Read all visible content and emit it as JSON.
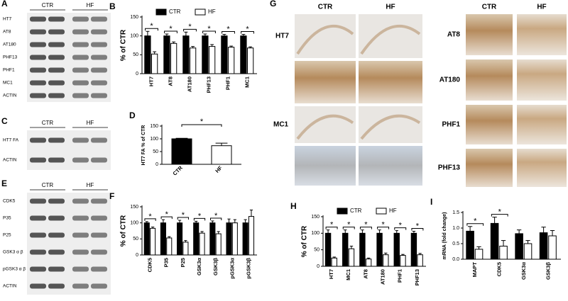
{
  "figure": {
    "blots": [
      {
        "label": "A",
        "groups": [
          "CTR",
          "HF"
        ],
        "rows": [
          "HT7",
          "AT8",
          "AT180",
          "PHF13",
          "PHF1",
          "MC1",
          "ACTIN"
        ]
      },
      {
        "label": "C",
        "groups": [
          "CTR",
          "HF"
        ],
        "rows": [
          "HT7 FA",
          "ACTIN"
        ]
      },
      {
        "label": "E",
        "groups": [
          "CTR",
          "HF"
        ],
        "rows": [
          "CDK5",
          "P35",
          "P25",
          "GSK3 α β",
          "pGSK3 α β",
          "ACTIN"
        ]
      }
    ],
    "micrographs": {
      "label": "G",
      "columns": [
        "CTR",
        "HF",
        "CTR",
        "HF"
      ],
      "left_rows": [
        "HT7",
        "MC1"
      ],
      "right_rows": [
        "AT8",
        "AT180",
        "PHF1",
        "PHF13"
      ]
    }
  },
  "chart_data": [
    {
      "type": "bar",
      "label": "B",
      "y_label": "% of CTR",
      "categories": [
        "HT7",
        "AT8",
        "AT180",
        "PHF13",
        "PHF1",
        "MC1"
      ],
      "series": [
        {
          "name": "CTR",
          "color": "#000000",
          "values": [
            100,
            100,
            100,
            100,
            100,
            100
          ],
          "errors": [
            12,
            5,
            10,
            5,
            4,
            4
          ]
        },
        {
          "name": "HF",
          "color": "#ffffff",
          "values": [
            52,
            80,
            68,
            72,
            70,
            68
          ],
          "errors": [
            6,
            4,
            4,
            5,
            3,
            3
          ]
        }
      ],
      "annotations": [
        "*",
        "*",
        "*",
        "*",
        "*",
        "*"
      ],
      "ylim": [
        0,
        150
      ],
      "yticks": [
        0,
        50,
        100,
        150
      ],
      "legend": "top"
    },
    {
      "type": "bar",
      "label": "D",
      "y_label": "HT7 FA % of CTR",
      "categories": [
        "CTR",
        "HF"
      ],
      "values": [
        100,
        73
      ],
      "errors": [
        2,
        10
      ],
      "colors": [
        "#000000",
        "#ffffff"
      ],
      "annotation": "*",
      "ylim": [
        0,
        150
      ],
      "yticks": [
        0,
        50,
        100,
        150
      ]
    },
    {
      "type": "bar",
      "label": "F",
      "y_label": "% of CTR",
      "categories": [
        "CDK5",
        "P35",
        "P25",
        "GSK3α",
        "GSK3β",
        "pGSK3α",
        "pGSK3β"
      ],
      "series": [
        {
          "name": "CTR",
          "color": "#000000",
          "values": [
            100,
            100,
            100,
            100,
            100,
            100,
            100
          ],
          "errors": [
            4,
            10,
            8,
            5,
            6,
            12,
            10
          ]
        },
        {
          "name": "HF",
          "color": "#ffffff",
          "values": [
            83,
            53,
            40,
            68,
            66,
            100,
            120
          ],
          "errors": [
            4,
            4,
            5,
            5,
            7,
            10,
            20
          ]
        }
      ],
      "annotations": [
        "*",
        "*",
        "*",
        "*",
        "*",
        null,
        null
      ],
      "ylim": [
        0,
        150
      ],
      "yticks": [
        0,
        50,
        100,
        150
      ]
    },
    {
      "type": "bar",
      "label": "H",
      "y_label": "% of CTR",
      "categories": [
        "HT7",
        "MC1",
        "AT8",
        "AT180",
        "PHF1",
        "PHF13"
      ],
      "series": [
        {
          "name": "CTR",
          "color": "#000000",
          "values": [
            100,
            100,
            100,
            100,
            100,
            100
          ],
          "errors": [
            10,
            10,
            10,
            10,
            8,
            6
          ]
        },
        {
          "name": "HF",
          "color": "#ffffff",
          "values": [
            25,
            53,
            22,
            35,
            33,
            35
          ],
          "errors": [
            3,
            8,
            3,
            5,
            3,
            4
          ]
        }
      ],
      "annotations": [
        "*",
        "*",
        "*",
        "*",
        "*",
        "*"
      ],
      "ylim": [
        0,
        150
      ],
      "yticks": [
        0,
        50,
        100,
        150
      ],
      "legend": "top"
    },
    {
      "type": "bar",
      "label": "I",
      "y_label": "mRNA (fold change)",
      "categories": [
        "MAPT",
        "CDK5",
        "GSK3α",
        "GSK3β"
      ],
      "series": [
        {
          "name": "CTR",
          "color": "#000000",
          "values": [
            0.9,
            1.15,
            0.82,
            0.85
          ],
          "errors": [
            0.15,
            0.2,
            0.12,
            0.18
          ]
        },
        {
          "name": "HF",
          "color": "#ffffff",
          "values": [
            0.32,
            0.42,
            0.5,
            0.75
          ],
          "errors": [
            0.08,
            0.18,
            0.1,
            0.17
          ]
        }
      ],
      "annotations": [
        "*",
        "*",
        null,
        null
      ],
      "ylim": [
        0,
        1.5
      ],
      "yticks": [
        {
          "value": 0,
          "label": "0.0"
        },
        {
          "value": 0.5,
          "label": "0.5"
        },
        {
          "value": 1,
          "label": "1.0"
        },
        {
          "value": 1.5,
          "label": "1.5"
        }
      ]
    }
  ]
}
